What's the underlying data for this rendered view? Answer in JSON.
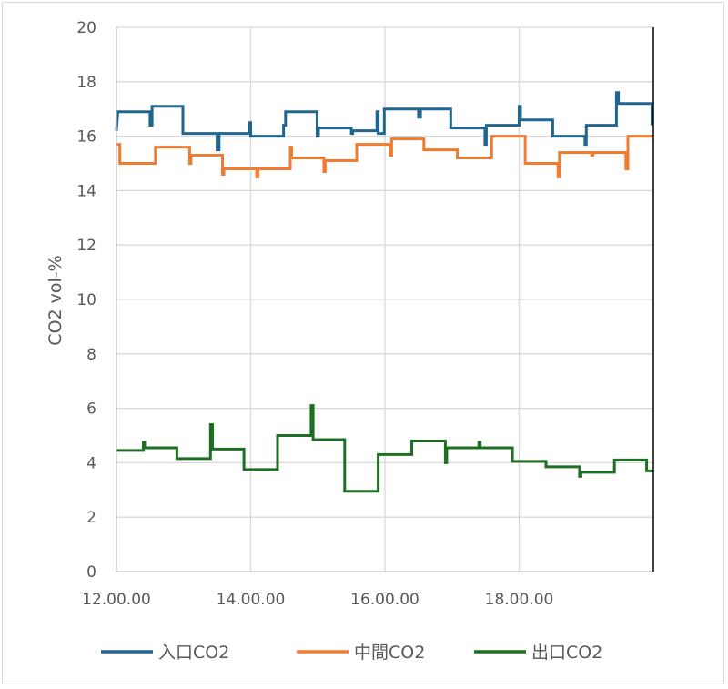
{
  "chart_data": {
    "type": "line",
    "title": "",
    "xlabel": "",
    "ylabel": "CO2 vol-%",
    "ylim": [
      0,
      20
    ],
    "xlim": [
      12.0,
      20.0
    ],
    "yticks": [
      0,
      2,
      4,
      6,
      8,
      10,
      12,
      14,
      16,
      18,
      20
    ],
    "xticks": [
      {
        "value": 12,
        "label": "12.00.00"
      },
      {
        "value": 14,
        "label": "14.00.00"
      },
      {
        "value": 16,
        "label": "16.00.00"
      },
      {
        "value": 18,
        "label": "18.00.00"
      }
    ],
    "grid": true,
    "legend_position": "bottom",
    "series": [
      {
        "name": "入口CO2",
        "color": "#20668f",
        "points": [
          [
            12.0,
            16.2
          ],
          [
            12.02,
            16.9
          ],
          [
            12.5,
            16.9
          ],
          [
            12.5,
            16.4
          ],
          [
            12.53,
            16.4
          ],
          [
            12.53,
            17.1
          ],
          [
            12.99,
            17.1
          ],
          [
            12.99,
            16.1
          ],
          [
            13.5,
            16.1
          ],
          [
            13.5,
            15.5
          ],
          [
            13.53,
            15.5
          ],
          [
            13.53,
            16.1
          ],
          [
            13.98,
            16.1
          ],
          [
            13.98,
            16.5
          ],
          [
            14.0,
            16.5
          ],
          [
            14.0,
            16.0
          ],
          [
            14.49,
            16.0
          ],
          [
            14.49,
            16.4
          ],
          [
            14.52,
            16.4
          ],
          [
            14.52,
            16.9
          ],
          [
            14.99,
            16.9
          ],
          [
            14.99,
            16.0
          ],
          [
            15.01,
            16.0
          ],
          [
            15.01,
            16.3
          ],
          [
            15.5,
            16.3
          ],
          [
            15.5,
            16.1
          ],
          [
            15.52,
            16.1
          ],
          [
            15.52,
            16.2
          ],
          [
            15.88,
            16.2
          ],
          [
            15.88,
            16.9
          ],
          [
            15.9,
            16.9
          ],
          [
            15.9,
            16.1
          ],
          [
            15.99,
            16.1
          ],
          [
            15.99,
            17.0
          ],
          [
            16.5,
            17.0
          ],
          [
            16.5,
            16.7
          ],
          [
            16.53,
            16.7
          ],
          [
            16.53,
            17.0
          ],
          [
            16.98,
            17.0
          ],
          [
            16.98,
            16.3
          ],
          [
            17.49,
            16.3
          ],
          [
            17.49,
            15.7
          ],
          [
            17.51,
            15.7
          ],
          [
            17.51,
            16.4
          ],
          [
            18.0,
            16.4
          ],
          [
            18.0,
            17.1
          ],
          [
            18.02,
            17.1
          ],
          [
            18.02,
            16.6
          ],
          [
            18.5,
            16.6
          ],
          [
            18.5,
            16.0
          ],
          [
            18.98,
            16.0
          ],
          [
            18.98,
            15.7
          ],
          [
            19.0,
            15.7
          ],
          [
            19.0,
            16.4
          ],
          [
            19.45,
            16.4
          ],
          [
            19.45,
            17.6
          ],
          [
            19.48,
            17.6
          ],
          [
            19.48,
            17.2
          ],
          [
            19.98,
            17.2
          ],
          [
            19.98,
            16.4
          ]
        ]
      },
      {
        "name": "中間CO2",
        "color": "#f07b31",
        "points": [
          [
            12.0,
            15.7
          ],
          [
            12.05,
            15.7
          ],
          [
            12.05,
            15.0
          ],
          [
            12.09,
            15.0
          ],
          [
            12.09,
            15.0
          ],
          [
            12.58,
            15.0
          ],
          [
            12.58,
            15.6
          ],
          [
            13.09,
            15.6
          ],
          [
            13.09,
            15.0
          ],
          [
            13.11,
            15.0
          ],
          [
            13.11,
            15.3
          ],
          [
            13.58,
            15.3
          ],
          [
            13.58,
            14.6
          ],
          [
            13.6,
            14.6
          ],
          [
            13.6,
            14.8
          ],
          [
            14.09,
            14.8
          ],
          [
            14.09,
            14.5
          ],
          [
            14.11,
            14.5
          ],
          [
            14.11,
            14.8
          ],
          [
            14.59,
            14.8
          ],
          [
            14.59,
            15.6
          ],
          [
            14.61,
            15.6
          ],
          [
            14.61,
            15.2
          ],
          [
            15.09,
            15.2
          ],
          [
            15.09,
            14.7
          ],
          [
            15.11,
            14.7
          ],
          [
            15.11,
            15.1
          ],
          [
            15.58,
            15.1
          ],
          [
            15.58,
            15.7
          ],
          [
            16.08,
            15.7
          ],
          [
            16.08,
            15.3
          ],
          [
            16.1,
            15.3
          ],
          [
            16.1,
            15.9
          ],
          [
            16.58,
            15.9
          ],
          [
            16.58,
            15.5
          ],
          [
            17.08,
            15.5
          ],
          [
            17.08,
            15.2
          ],
          [
            17.59,
            15.2
          ],
          [
            17.59,
            16.0
          ],
          [
            18.09,
            16.0
          ],
          [
            18.09,
            15.0
          ],
          [
            18.58,
            15.0
          ],
          [
            18.58,
            14.5
          ],
          [
            18.6,
            14.5
          ],
          [
            18.6,
            15.4
          ],
          [
            19.08,
            15.4
          ],
          [
            19.08,
            15.3
          ],
          [
            19.1,
            15.3
          ],
          [
            19.1,
            15.4
          ],
          [
            19.59,
            15.4
          ],
          [
            19.59,
            14.8
          ],
          [
            19.62,
            14.8
          ],
          [
            19.62,
            16.0
          ],
          [
            20.0,
            16.0
          ]
        ]
      },
      {
        "name": "出口CO2",
        "color": "#1e6f24",
        "points": [
          [
            12.0,
            4.45
          ],
          [
            12.4,
            4.45
          ],
          [
            12.4,
            4.75
          ],
          [
            12.42,
            4.75
          ],
          [
            12.42,
            4.55
          ],
          [
            12.9,
            4.55
          ],
          [
            12.9,
            4.15
          ],
          [
            13.4,
            4.15
          ],
          [
            13.4,
            5.4
          ],
          [
            13.43,
            5.4
          ],
          [
            13.43,
            4.5
          ],
          [
            13.9,
            4.5
          ],
          [
            13.9,
            3.75
          ],
          [
            14.4,
            3.75
          ],
          [
            14.4,
            5.0
          ],
          [
            14.9,
            5.0
          ],
          [
            14.9,
            6.1
          ],
          [
            14.93,
            6.1
          ],
          [
            14.93,
            4.85
          ],
          [
            15.4,
            4.85
          ],
          [
            15.4,
            2.95
          ],
          [
            15.9,
            2.95
          ],
          [
            15.9,
            4.3
          ],
          [
            16.4,
            4.3
          ],
          [
            16.4,
            4.8
          ],
          [
            16.9,
            4.8
          ],
          [
            16.9,
            4.0
          ],
          [
            16.92,
            4.0
          ],
          [
            16.92,
            4.55
          ],
          [
            17.4,
            4.55
          ],
          [
            17.4,
            4.75
          ],
          [
            17.42,
            4.75
          ],
          [
            17.42,
            4.55
          ],
          [
            17.9,
            4.55
          ],
          [
            17.9,
            4.05
          ],
          [
            18.4,
            4.05
          ],
          [
            18.4,
            3.85
          ],
          [
            18.9,
            3.85
          ],
          [
            18.9,
            3.5
          ],
          [
            18.92,
            3.5
          ],
          [
            18.92,
            3.65
          ],
          [
            19.42,
            3.65
          ],
          [
            19.42,
            4.1
          ],
          [
            19.9,
            4.1
          ],
          [
            19.9,
            3.7
          ],
          [
            20.0,
            3.7
          ]
        ]
      }
    ]
  }
}
